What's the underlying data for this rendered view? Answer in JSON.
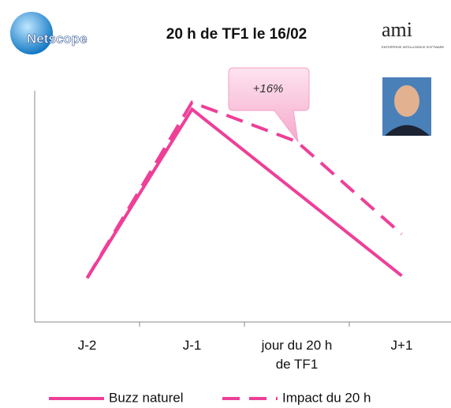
{
  "chart_data": {
    "type": "line",
    "title": "20 h de TF1 le 16/02",
    "logos": {
      "left": "Netscope",
      "right": "ami",
      "right_tagline": "ENTERPRISE INTELLIGENCE SOFTWARE"
    },
    "annotation": "+16%",
    "categories": [
      "J-2",
      "J-1",
      "jour du 20 h\nde TF1",
      "J+1"
    ],
    "series": [
      {
        "name": "Buzz naturel",
        "color": "#ee3f98",
        "dash": false,
        "values": [
          19,
          92,
          56,
          20
        ]
      },
      {
        "name": "Impact du 20 h",
        "color": "#ee3f98",
        "dash": true,
        "values": [
          19,
          95,
          78,
          38
        ]
      }
    ],
    "ylim": [
      0,
      100
    ]
  }
}
